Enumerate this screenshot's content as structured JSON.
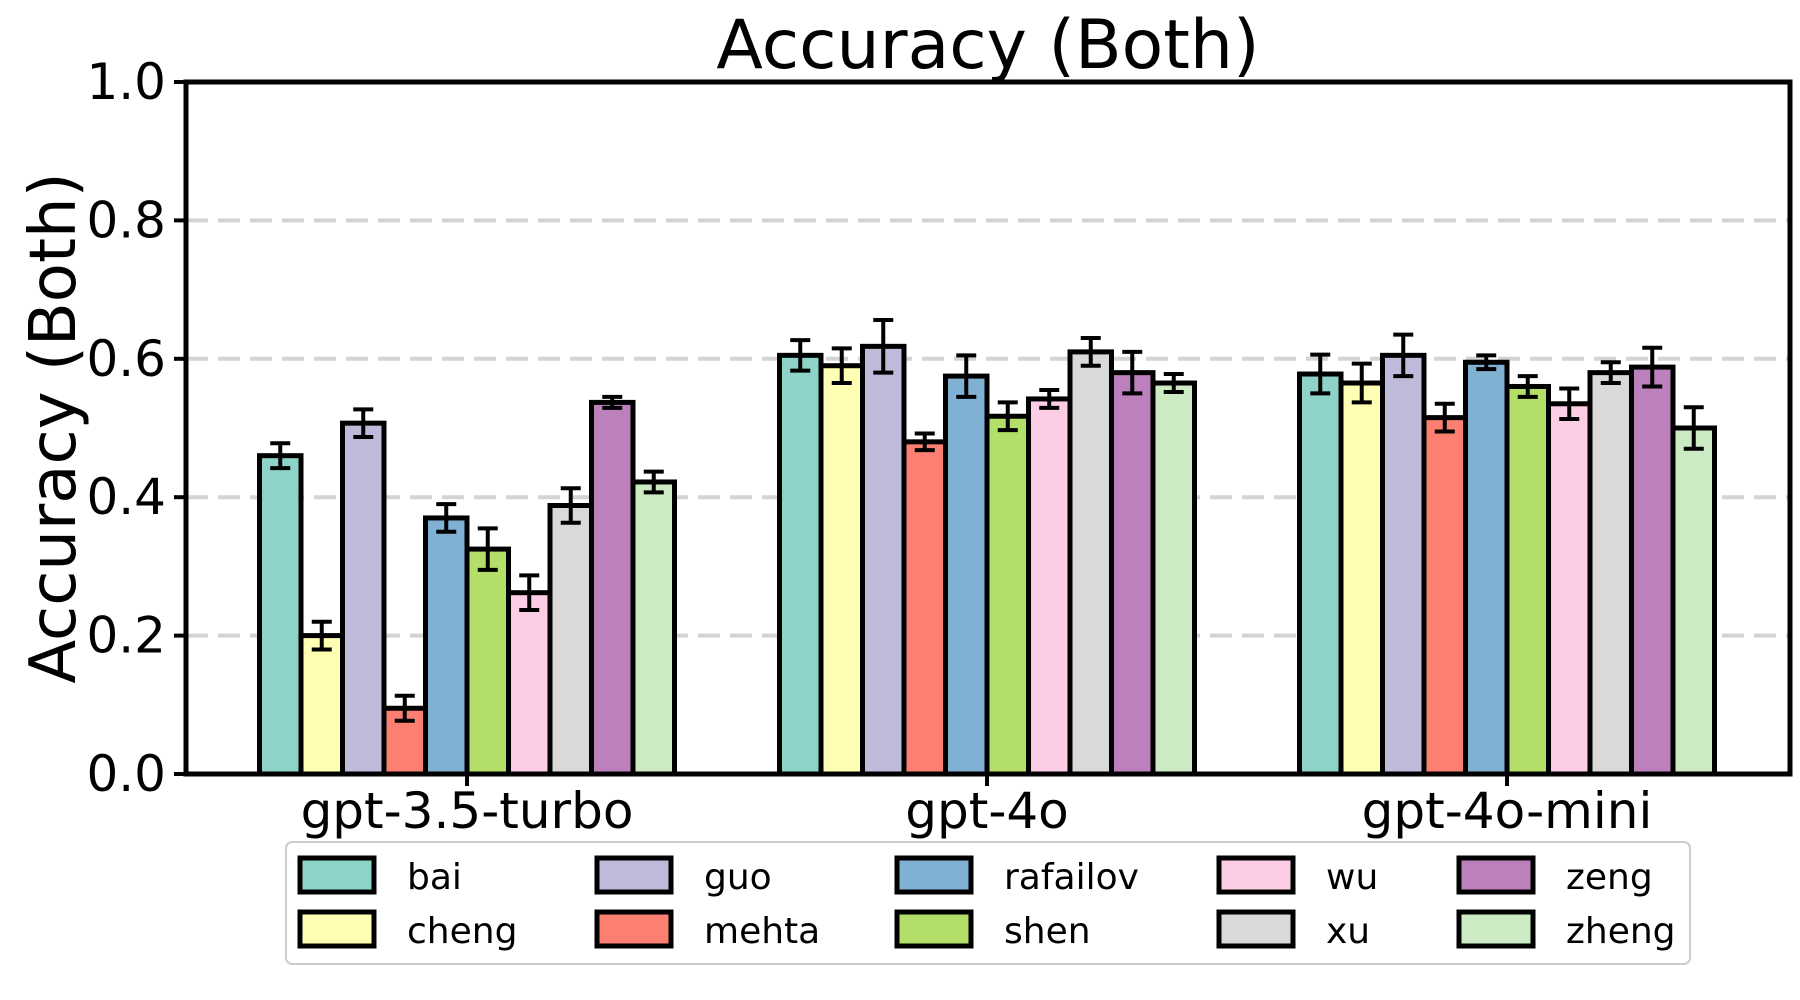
{
  "chart_data": {
    "type": "bar",
    "title": "Accuracy (Both)",
    "xlabel": "",
    "ylabel": "Accuracy (Both)",
    "ylim": [
      0,
      1.0
    ],
    "yticks": [
      "0.0",
      "0.2",
      "0.4",
      "0.6",
      "0.8",
      "1.0"
    ],
    "grid": "horizontal dashed at 0.2, 0.4, 0.6, 0.8",
    "legend_position": "bottom",
    "categories": [
      "gpt-3.5-turbo",
      "gpt-4o",
      "gpt-4o-mini"
    ],
    "series": [
      {
        "name": "bai",
        "color": "#8dd3c7",
        "values": [
          0.46,
          0.605,
          0.578
        ],
        "errors": [
          0.018,
          0.022,
          0.028
        ]
      },
      {
        "name": "cheng",
        "color": "#ffffb3",
        "values": [
          0.2,
          0.59,
          0.565
        ],
        "errors": [
          0.02,
          0.025,
          0.028
        ]
      },
      {
        "name": "guo",
        "color": "#bebada",
        "values": [
          0.507,
          0.618,
          0.605
        ],
        "errors": [
          0.02,
          0.038,
          0.03
        ]
      },
      {
        "name": "mehta",
        "color": "#fb8072",
        "values": [
          0.095,
          0.48,
          0.515
        ],
        "errors": [
          0.018,
          0.012,
          0.02
        ]
      },
      {
        "name": "rafailov",
        "color": "#80b1d3",
        "values": [
          0.37,
          0.575,
          0.595
        ],
        "errors": [
          0.02,
          0.03,
          0.01
        ]
      },
      {
        "name": "shen",
        "color": "#b3de69",
        "values": [
          0.325,
          0.517,
          0.56
        ],
        "errors": [
          0.03,
          0.02,
          0.015
        ]
      },
      {
        "name": "wu",
        "color": "#fccde5",
        "values": [
          0.262,
          0.542,
          0.535
        ],
        "errors": [
          0.025,
          0.013,
          0.022
        ]
      },
      {
        "name": "xu",
        "color": "#d9d9d9",
        "values": [
          0.388,
          0.61,
          0.58
        ],
        "errors": [
          0.025,
          0.02,
          0.015
        ]
      },
      {
        "name": "zeng",
        "color": "#bc80bd",
        "values": [
          0.537,
          0.58,
          0.588
        ],
        "errors": [
          0.008,
          0.03,
          0.028
        ]
      },
      {
        "name": "zheng",
        "color": "#ccebc5",
        "values": [
          0.422,
          0.565,
          0.5
        ],
        "errors": [
          0.015,
          0.013,
          0.03
        ]
      }
    ]
  }
}
